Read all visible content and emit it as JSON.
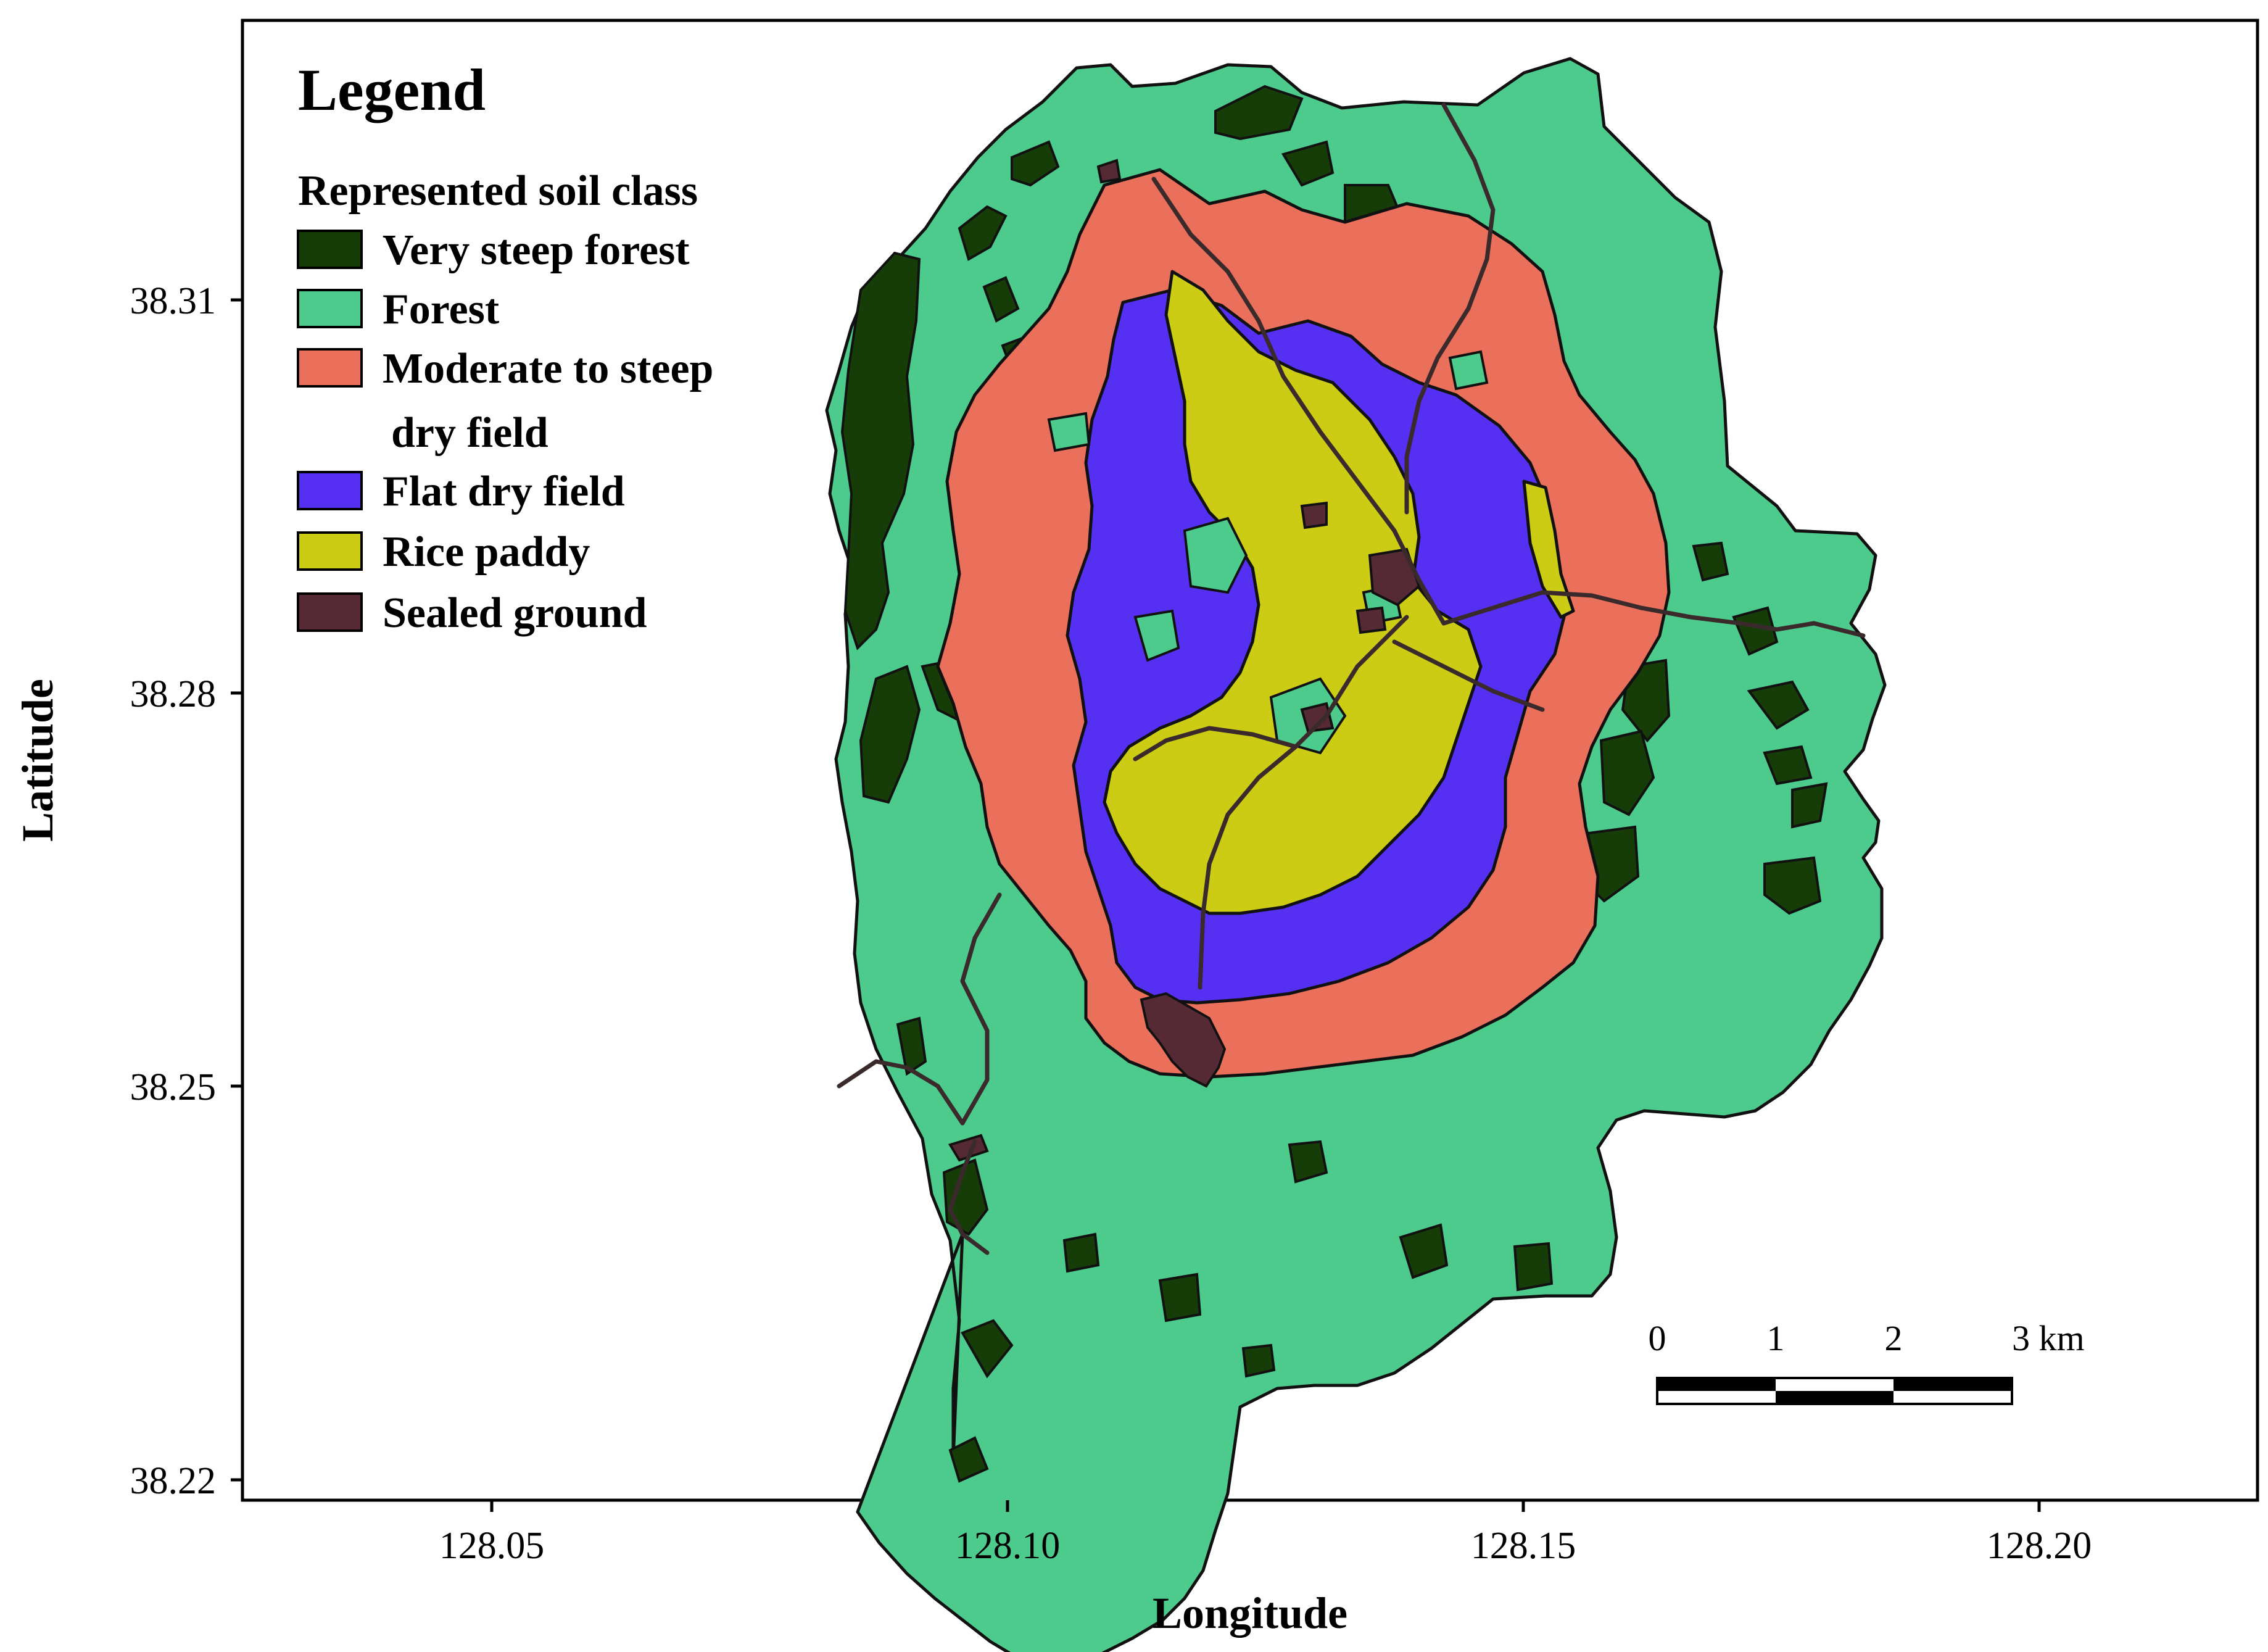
{
  "axes": {
    "xlabel": "Longitude",
    "ylabel": "Latitude",
    "x_ticks": [
      "128.05",
      "128.10",
      "128.15",
      "128.20"
    ],
    "y_ticks": [
      "38.31",
      "38.28",
      "38.25",
      "38.22"
    ]
  },
  "legend": {
    "title": "Legend",
    "subtitle": "Represented soil class",
    "items": [
      {
        "label": "Very steep forest",
        "color": "#163d08"
      },
      {
        "label": "Forest",
        "color": "#4ccb8c"
      },
      {
        "label": "Moderate to steep",
        "label_line2": "dry field",
        "color": "#ea705c"
      },
      {
        "label": "Flat dry field",
        "color": "#5530f3"
      },
      {
        "label": "Rice paddy",
        "color": "#cccc14"
      },
      {
        "label": "Sealed ground",
        "color": "#552a35"
      }
    ]
  },
  "scale_bar": {
    "labels": [
      "0",
      "1",
      "2",
      "3 km"
    ]
  }
}
